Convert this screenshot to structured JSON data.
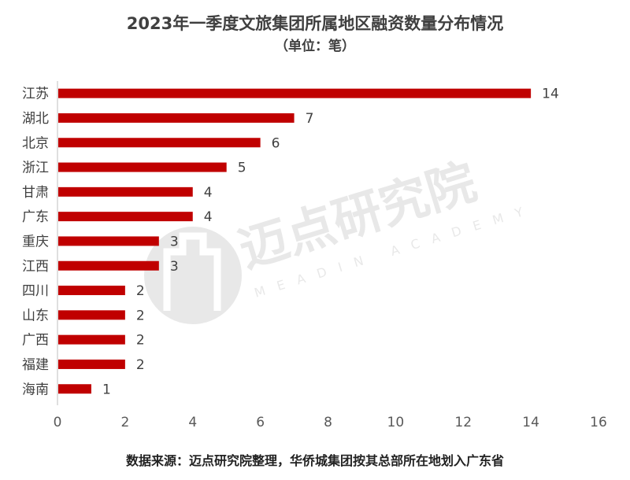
{
  "chart_data": {
    "type": "bar",
    "orientation": "horizontal",
    "title": "2023年一季度文旅集团所属地区融资数量分布情况",
    "subtitle": "（单位：笔）",
    "categories": [
      "江苏",
      "湖北",
      "北京",
      "浙江",
      "甘肃",
      "广东",
      "重庆",
      "江西",
      "四川",
      "山东",
      "广西",
      "福建",
      "海南"
    ],
    "values": [
      14,
      7,
      6,
      5,
      4,
      4,
      3,
      3,
      2,
      2,
      2,
      2,
      1
    ],
    "xlim": [
      0,
      16
    ],
    "xticks": [
      0,
      2,
      4,
      6,
      8,
      10,
      12,
      14,
      16
    ],
    "grid": false,
    "bar_color": "#c00000"
  },
  "watermark": {
    "name": "迈点研究院",
    "english": "MEADIN ACADEMY"
  },
  "source": "数据来源：迈点研究院整理，华侨城集团按其总部所在地划入广东省"
}
